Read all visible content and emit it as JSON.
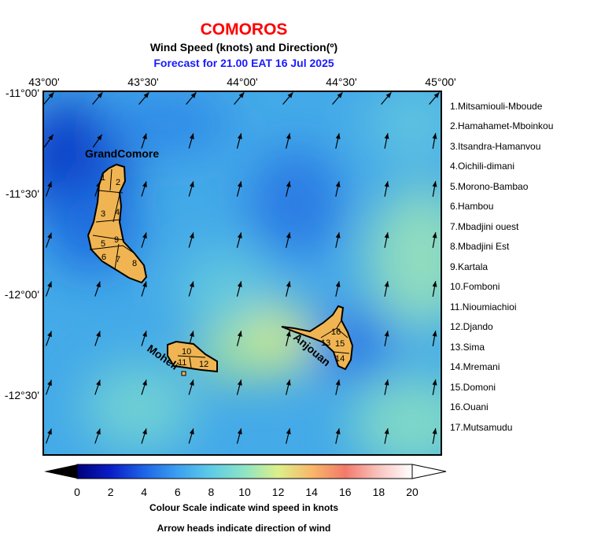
{
  "header": {
    "title": "COMOROS",
    "subtitle": "Wind Speed (knots) and Direction(º)",
    "forecast": "Forecast for  21.00 EAT 16 Jul 2025"
  },
  "axes": {
    "lon_labels": [
      "43°00'",
      "43°30'",
      "44°00'",
      "44°30'",
      "45°00'"
    ],
    "lat_labels": [
      "-11°00'",
      "-11°30'",
      "-12°00'",
      "-12°30'"
    ]
  },
  "regions": [
    "1.Mitsamiouli-Mboude",
    "2.Hamahamet-Mboinkou",
    "3.Itsandra-Hamanvou",
    "4.Oichili-dimani",
    "5.Morono-Bambao",
    "6.Hambou",
    "7.Mbadjini ouest",
    "8.Mbadjini Est",
    "9.Kartala",
    "10.Fomboni",
    "11.Nioumiachioi",
    "12.Djando",
    "13.Sima",
    "14.Mremani",
    "15.Domoni",
    "16.Ouani",
    "17.Mutsamudu"
  ],
  "islands": {
    "grand_comore": "GrandComore",
    "moheli": "Moheli",
    "anjouan": "Anjouan"
  },
  "colorbar": {
    "ticks": [
      "0",
      "2",
      "4",
      "6",
      "8",
      "10",
      "12",
      "14",
      "16",
      "18",
      "20"
    ],
    "note1": "Colour Scale indicate wind speed in knots",
    "note2": "Arrow heads indicate direction of wind"
  },
  "colors": {
    "title": "#ff0000",
    "forecast": "#1a1aff",
    "land": "#f0b552"
  }
}
